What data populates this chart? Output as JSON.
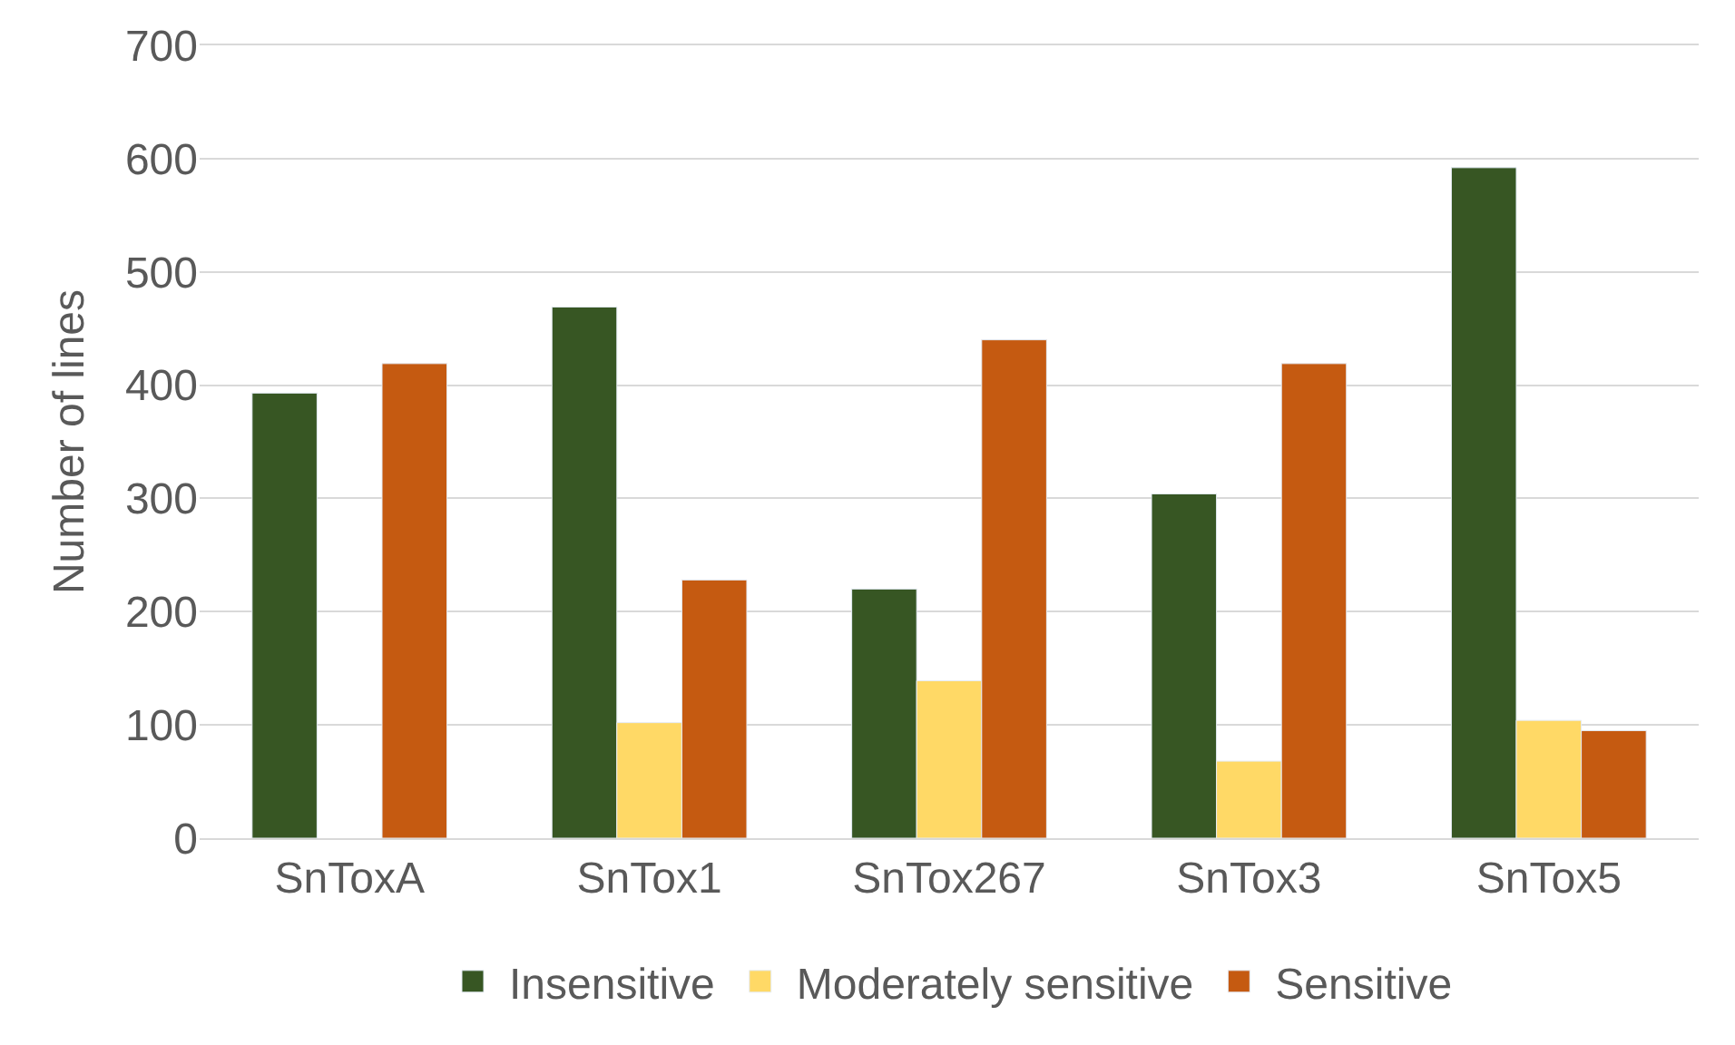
{
  "chart_data": {
    "type": "bar",
    "ylabel": "Number of lines",
    "categories": [
      "SnToxA",
      "SnTox1",
      "SnTox267",
      "SnTox3",
      "SnTox5"
    ],
    "series": [
      {
        "name": "Insensitive",
        "color": "#375623",
        "values": [
          393,
          469,
          220,
          304,
          592
        ]
      },
      {
        "name": "Moderately sensitive",
        "color": "#ffd966",
        "values": [
          null,
          102,
          139,
          68,
          104
        ]
      },
      {
        "name": "Sensitive",
        "color": "#c55a11",
        "values": [
          419,
          228,
          440,
          419,
          95
        ]
      }
    ],
    "ylim": [
      0,
      700
    ],
    "yticks": [
      0,
      100,
      200,
      300,
      400,
      500,
      600,
      700
    ],
    "grid": "y",
    "legend": "bottom"
  }
}
